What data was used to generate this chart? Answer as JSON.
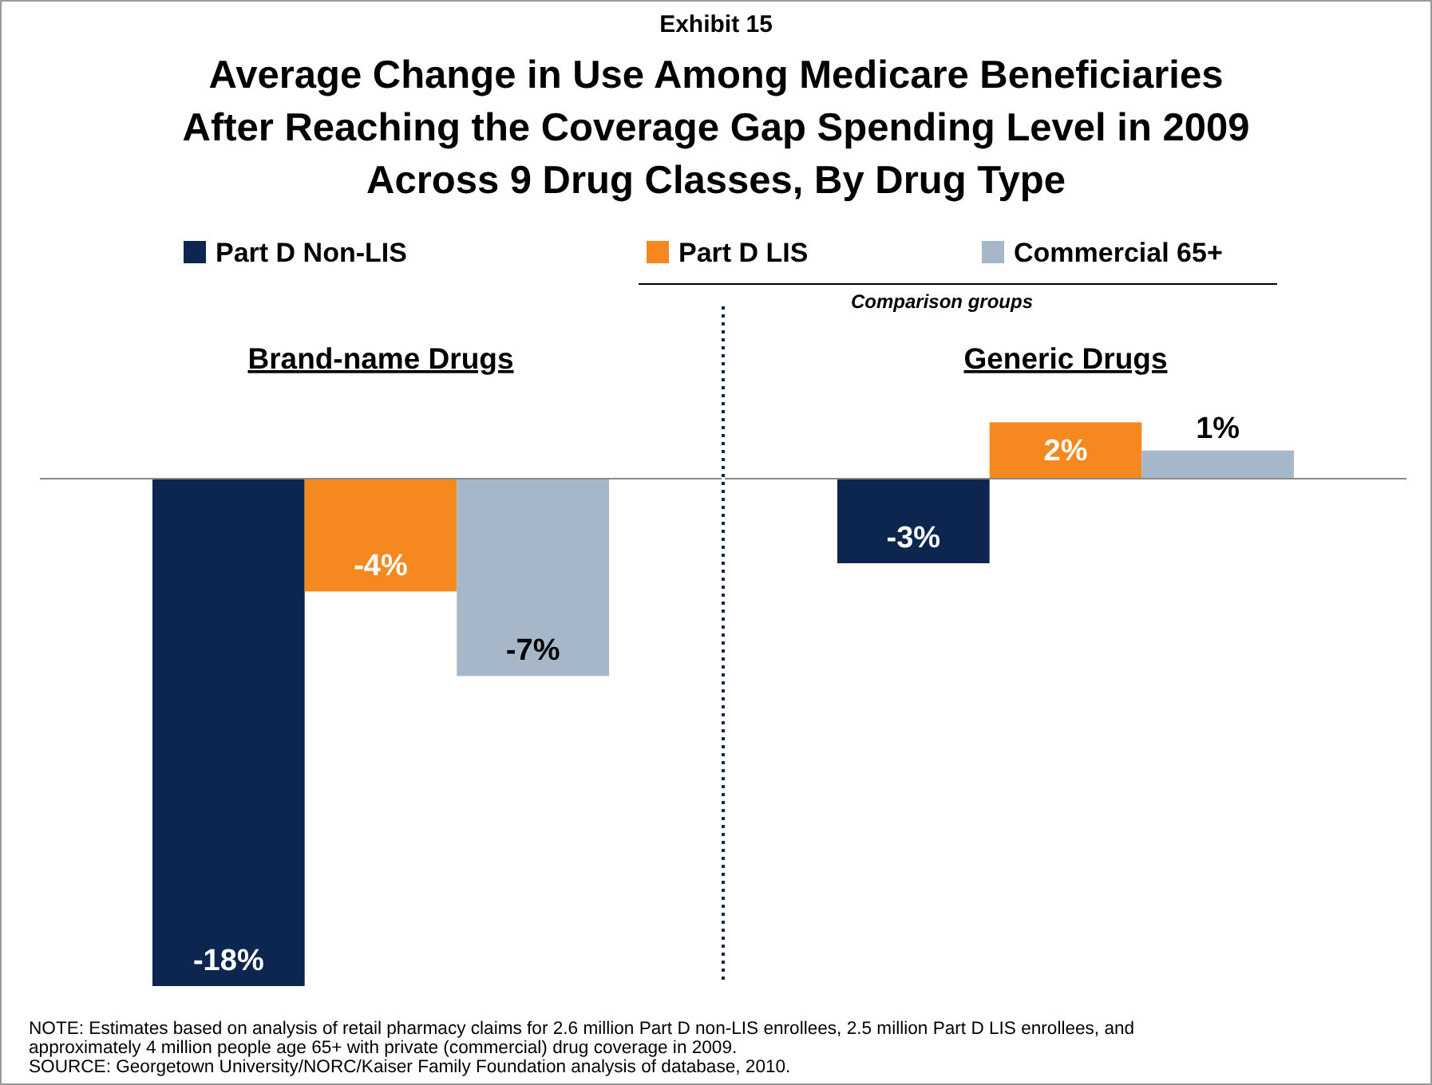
{
  "chart_data": [
    {
      "type": "bar",
      "subtitle": "Exhibit 15",
      "title": "Average Change in Use Among Medicare Beneficiaries\nAfter Reaching the Coverage Gap Spending Level in 2009\nAcross 9 Drug Classes, By Drug Type",
      "xlabel": "Brand-name Drugs",
      "categories": [
        null
      ],
      "series": [
        {
          "name": "Part D Non-LIS",
          "color": "#0c2650",
          "values": [
            -18
          ],
          "value_labels": [
            "-18%"
          ]
        },
        {
          "name": "Part D LIS",
          "color": "#f5891f",
          "values": [
            -4
          ],
          "value_labels": [
            "-4%"
          ]
        },
        {
          "name": "Commercial 65+",
          "color": "#a6b7c9",
          "values": [
            -7
          ],
          "value_labels": [
            "-7%"
          ]
        }
      ],
      "legend": "top",
      "annotations": [
        "Comparison groups",
        "NOTE:  Estimates based on analysis of retail pharmacy claims for 2.6 million Part D non-LIS enrollees, 2.5 million Part D LIS enrollees, and\napproximately 4 million people age 65+ with private (commercial) drug coverage in 2009.\nSOURCE:  Georgetown University/NORC/Kaiser Family Foundation analysis of database, 2010."
      ]
    },
    {
      "type": "bar",
      "xlabel": "Generic Drugs",
      "categories": [
        null
      ],
      "series": [
        {
          "color": "#0c2650",
          "values": [
            -3
          ],
          "value_labels": [
            "-3%"
          ]
        },
        {
          "color": "#f5891f",
          "values": [
            2
          ],
          "value_labels": [
            "2%"
          ]
        },
        {
          "color": "#a6b7c9",
          "values": [
            1
          ],
          "value_labels": [
            "1%"
          ]
        }
      ]
    }
  ]
}
